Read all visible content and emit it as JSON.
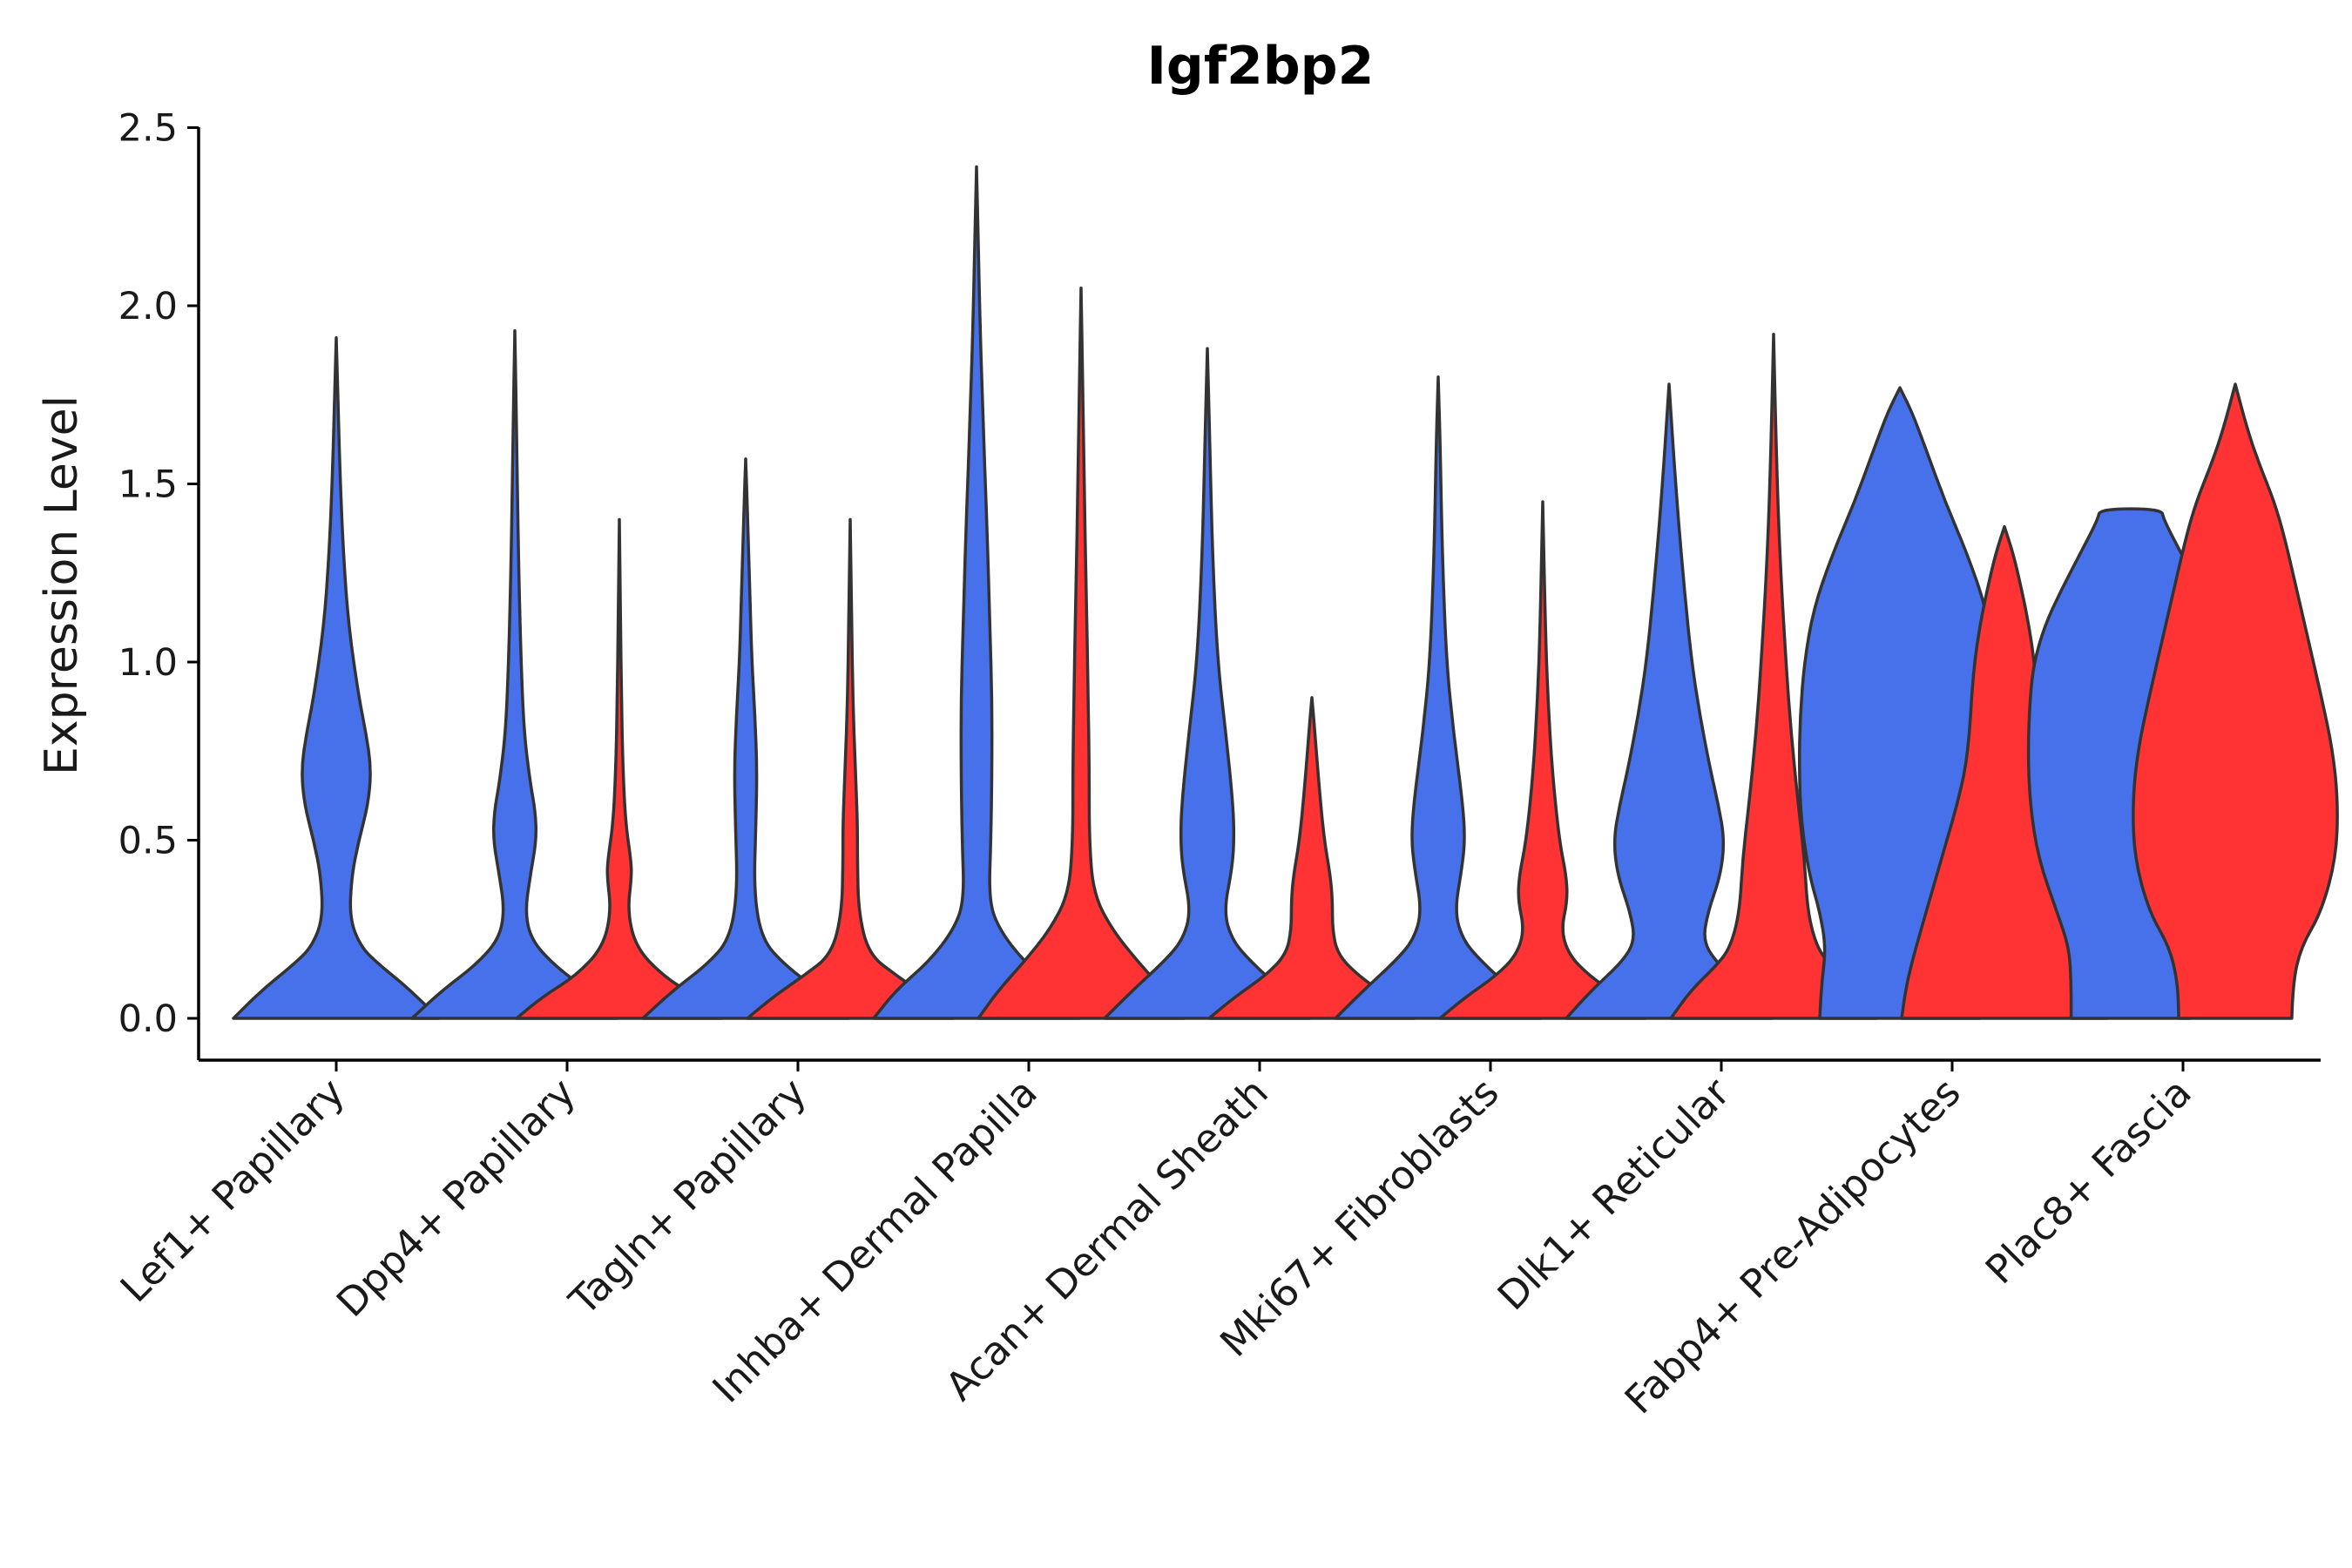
{
  "chart_data": {
    "type": "violin",
    "title": "Igf2bp2",
    "xlabel": "",
    "ylabel": "Expression Level",
    "ylim": [
      -0.12,
      2.52
    ],
    "yticks": [
      0.0,
      0.5,
      1.0,
      1.5,
      2.0,
      2.5
    ],
    "ytick_labels": [
      "0.0",
      "0.5",
      "1.0",
      "1.5",
      "2.0",
      "2.5"
    ],
    "grid": false,
    "legend": "none",
    "series_colors": {
      "group1": "#4671EB",
      "group2": "#FF3333"
    },
    "stroke_color": "#333333",
    "categories": [
      "Lef1+ Papillary",
      "Dpp4+ Papillary",
      "Tagln+ Papillary",
      "Inhba+ Dermal Papilla",
      "Acan+ Dermal Sheath",
      "Mki67+ Fibroblasts",
      "Dlk1+ Reticular",
      "Fabp4+ Pre-Adipocytes",
      "Plac8+ Fascia"
    ],
    "violins": [
      {
        "category": 0,
        "group": "group1",
        "max": 1.91,
        "profile": [
          [
            0,
            1.0
          ],
          [
            0.08,
            0.72
          ],
          [
            0.15,
            0.42
          ],
          [
            0.2,
            0.24
          ],
          [
            0.28,
            0.13
          ],
          [
            0.4,
            0.15
          ],
          [
            0.5,
            0.22
          ],
          [
            0.6,
            0.31
          ],
          [
            0.7,
            0.34
          ],
          [
            0.8,
            0.29
          ],
          [
            0.9,
            0.22
          ],
          [
            1.1,
            0.12
          ],
          [
            1.3,
            0.07
          ],
          [
            1.5,
            0.04
          ],
          [
            1.7,
            0.02
          ],
          [
            1.91,
            0
          ]
        ]
      },
      {
        "category": 1,
        "group": "group1",
        "max": 1.93,
        "profile": [
          [
            0,
            1.0
          ],
          [
            0.08,
            0.7
          ],
          [
            0.15,
            0.38
          ],
          [
            0.22,
            0.16
          ],
          [
            0.3,
            0.1
          ],
          [
            0.4,
            0.15
          ],
          [
            0.5,
            0.21
          ],
          [
            0.58,
            0.2
          ],
          [
            0.66,
            0.15
          ],
          [
            0.8,
            0.09
          ],
          [
            1.0,
            0.06
          ],
          [
            1.3,
            0.035
          ],
          [
            1.6,
            0.02
          ],
          [
            1.93,
            0
          ]
        ]
      },
      {
        "category": 1,
        "group": "group2",
        "max": 1.4,
        "profile": [
          [
            0,
            1.0
          ],
          [
            0.06,
            0.75
          ],
          [
            0.12,
            0.42
          ],
          [
            0.2,
            0.16
          ],
          [
            0.3,
            0.08
          ],
          [
            0.4,
            0.12
          ],
          [
            0.45,
            0.11
          ],
          [
            0.55,
            0.06
          ],
          [
            0.7,
            0.035
          ],
          [
            0.9,
            0.02
          ],
          [
            1.1,
            0.012
          ],
          [
            1.4,
            0
          ]
        ]
      },
      {
        "category": 2,
        "group": "group1",
        "max": 1.57,
        "profile": [
          [
            0,
            1.0
          ],
          [
            0.08,
            0.7
          ],
          [
            0.15,
            0.38
          ],
          [
            0.22,
            0.16
          ],
          [
            0.35,
            0.08
          ],
          [
            0.55,
            0.1
          ],
          [
            0.7,
            0.11
          ],
          [
            0.85,
            0.09
          ],
          [
            1.0,
            0.06
          ],
          [
            1.2,
            0.04
          ],
          [
            1.4,
            0.02
          ],
          [
            1.57,
            0
          ]
        ]
      },
      {
        "category": 2,
        "group": "group2",
        "max": 1.4,
        "profile": [
          [
            0,
            1.0
          ],
          [
            0.06,
            0.75
          ],
          [
            0.12,
            0.45
          ],
          [
            0.18,
            0.18
          ],
          [
            0.3,
            0.08
          ],
          [
            0.45,
            0.07
          ],
          [
            0.55,
            0.07
          ],
          [
            0.7,
            0.05
          ],
          [
            0.9,
            0.025
          ],
          [
            1.1,
            0.015
          ],
          [
            1.4,
            0
          ]
        ]
      },
      {
        "category": 3,
        "group": "group1",
        "max": 2.39,
        "profile": [
          [
            0,
            1.0
          ],
          [
            0.08,
            0.78
          ],
          [
            0.16,
            0.46
          ],
          [
            0.25,
            0.22
          ],
          [
            0.33,
            0.12
          ],
          [
            0.5,
            0.14
          ],
          [
            0.7,
            0.15
          ],
          [
            0.9,
            0.15
          ],
          [
            1.1,
            0.13
          ],
          [
            1.4,
            0.1
          ],
          [
            1.7,
            0.06
          ],
          [
            2.0,
            0.03
          ],
          [
            2.2,
            0.015
          ],
          [
            2.39,
            0
          ]
        ]
      },
      {
        "category": 3,
        "group": "group2",
        "max": 2.05,
        "profile": [
          [
            0,
            1.0
          ],
          [
            0.08,
            0.8
          ],
          [
            0.16,
            0.55
          ],
          [
            0.25,
            0.3
          ],
          [
            0.35,
            0.12
          ],
          [
            0.5,
            0.08
          ],
          [
            0.7,
            0.08
          ],
          [
            0.9,
            0.07
          ],
          [
            1.2,
            0.05
          ],
          [
            1.5,
            0.03
          ],
          [
            1.8,
            0.015
          ],
          [
            2.05,
            0
          ]
        ]
      },
      {
        "category": 4,
        "group": "group1",
        "max": 1.88,
        "profile": [
          [
            0,
            1.0
          ],
          [
            0.08,
            0.72
          ],
          [
            0.16,
            0.42
          ],
          [
            0.22,
            0.24
          ],
          [
            0.3,
            0.16
          ],
          [
            0.42,
            0.24
          ],
          [
            0.5,
            0.26
          ],
          [
            0.6,
            0.25
          ],
          [
            0.8,
            0.18
          ],
          [
            1.0,
            0.1
          ],
          [
            1.3,
            0.05
          ],
          [
            1.6,
            0.025
          ],
          [
            1.88,
            0
          ]
        ]
      },
      {
        "category": 4,
        "group": "group2",
        "max": 0.9,
        "profile": [
          [
            0,
            1.0
          ],
          [
            0.06,
            0.75
          ],
          [
            0.12,
            0.45
          ],
          [
            0.18,
            0.25
          ],
          [
            0.25,
            0.2
          ],
          [
            0.33,
            0.2
          ],
          [
            0.4,
            0.18
          ],
          [
            0.5,
            0.12
          ],
          [
            0.65,
            0.07
          ],
          [
            0.8,
            0.03
          ],
          [
            0.9,
            0
          ]
        ]
      },
      {
        "category": 5,
        "group": "group1",
        "max": 1.8,
        "profile": [
          [
            0,
            1.0
          ],
          [
            0.08,
            0.72
          ],
          [
            0.16,
            0.42
          ],
          [
            0.22,
            0.24
          ],
          [
            0.3,
            0.16
          ],
          [
            0.42,
            0.23
          ],
          [
            0.5,
            0.26
          ],
          [
            0.6,
            0.24
          ],
          [
            0.8,
            0.15
          ],
          [
            1.0,
            0.08
          ],
          [
            1.3,
            0.04
          ],
          [
            1.6,
            0.02
          ],
          [
            1.8,
            0
          ]
        ]
      },
      {
        "category": 5,
        "group": "group2",
        "max": 1.45,
        "profile": [
          [
            0,
            1.0
          ],
          [
            0.06,
            0.75
          ],
          [
            0.12,
            0.45
          ],
          [
            0.18,
            0.25
          ],
          [
            0.25,
            0.18
          ],
          [
            0.33,
            0.24
          ],
          [
            0.4,
            0.23
          ],
          [
            0.5,
            0.16
          ],
          [
            0.7,
            0.09
          ],
          [
            0.9,
            0.05
          ],
          [
            1.1,
            0.025
          ],
          [
            1.45,
            0
          ]
        ]
      },
      {
        "category": 6,
        "group": "group1",
        "max": 1.78,
        "profile": [
          [
            0,
            1.0
          ],
          [
            0.08,
            0.75
          ],
          [
            0.16,
            0.45
          ],
          [
            0.22,
            0.33
          ],
          [
            0.3,
            0.38
          ],
          [
            0.4,
            0.5
          ],
          [
            0.5,
            0.54
          ],
          [
            0.6,
            0.48
          ],
          [
            0.7,
            0.4
          ],
          [
            0.85,
            0.3
          ],
          [
            1.0,
            0.22
          ],
          [
            1.2,
            0.15
          ],
          [
            1.4,
            0.09
          ],
          [
            1.6,
            0.04
          ],
          [
            1.78,
            0
          ]
        ]
      },
      {
        "category": 6,
        "group": "group2",
        "max": 1.92,
        "profile": [
          [
            0,
            1.0
          ],
          [
            0.08,
            0.8
          ],
          [
            0.15,
            0.55
          ],
          [
            0.2,
            0.42
          ],
          [
            0.3,
            0.33
          ],
          [
            0.45,
            0.3
          ],
          [
            0.6,
            0.24
          ],
          [
            0.8,
            0.17
          ],
          [
            1.0,
            0.12
          ],
          [
            1.3,
            0.06
          ],
          [
            1.6,
            0.025
          ],
          [
            1.92,
            0
          ]
        ]
      },
      {
        "category": 7,
        "group": "group1",
        "max": 1.77,
        "profile": [
          [
            0,
            0.78
          ],
          [
            0.1,
            0.76
          ],
          [
            0.2,
            0.72
          ],
          [
            0.3,
            0.78
          ],
          [
            0.4,
            0.88
          ],
          [
            0.55,
            0.96
          ],
          [
            0.7,
            0.98
          ],
          [
            0.85,
            0.97
          ],
          [
            1.0,
            0.93
          ],
          [
            1.15,
            0.84
          ],
          [
            1.3,
            0.66
          ],
          [
            1.45,
            0.44
          ],
          [
            1.6,
            0.25
          ],
          [
            1.7,
            0.12
          ],
          [
            1.77,
            0
          ]
        ]
      },
      {
        "category": 7,
        "group": "group2",
        "max": 1.38,
        "profile": [
          [
            0,
            1.0
          ],
          [
            0.1,
            0.95
          ],
          [
            0.2,
            0.86
          ],
          [
            0.3,
            0.76
          ],
          [
            0.4,
            0.66
          ],
          [
            0.5,
            0.56
          ],
          [
            0.6,
            0.46
          ],
          [
            0.7,
            0.38
          ],
          [
            0.8,
            0.34
          ],
          [
            0.9,
            0.32
          ],
          [
            1.0,
            0.29
          ],
          [
            1.1,
            0.24
          ],
          [
            1.2,
            0.17
          ],
          [
            1.3,
            0.09
          ],
          [
            1.38,
            0
          ]
        ]
      },
      {
        "category": 8,
        "group": "group1",
        "max": 1.43,
        "profile": [
          [
            0,
            0.58
          ],
          [
            0.1,
            0.58
          ],
          [
            0.2,
            0.6
          ],
          [
            0.3,
            0.72
          ],
          [
            0.45,
            0.9
          ],
          [
            0.6,
            0.98
          ],
          [
            0.75,
            1.0
          ],
          [
            0.9,
            0.98
          ],
          [
            1.0,
            0.94
          ],
          [
            1.1,
            0.84
          ],
          [
            1.2,
            0.68
          ],
          [
            1.3,
            0.5
          ],
          [
            1.4,
            0.32
          ],
          [
            1.43,
            0.3
          ]
        ]
      },
      {
        "category": 8,
        "group": "group2",
        "max": 1.78,
        "profile": [
          [
            0,
            0.55
          ],
          [
            0.1,
            0.56
          ],
          [
            0.2,
            0.64
          ],
          [
            0.3,
            0.84
          ],
          [
            0.45,
            0.98
          ],
          [
            0.6,
            1.0
          ],
          [
            0.75,
            0.95
          ],
          [
            0.9,
            0.84
          ],
          [
            1.05,
            0.72
          ],
          [
            1.2,
            0.6
          ],
          [
            1.35,
            0.48
          ],
          [
            1.45,
            0.38
          ],
          [
            1.55,
            0.24
          ],
          [
            1.65,
            0.12
          ],
          [
            1.78,
            0
          ]
        ]
      }
    ]
  }
}
